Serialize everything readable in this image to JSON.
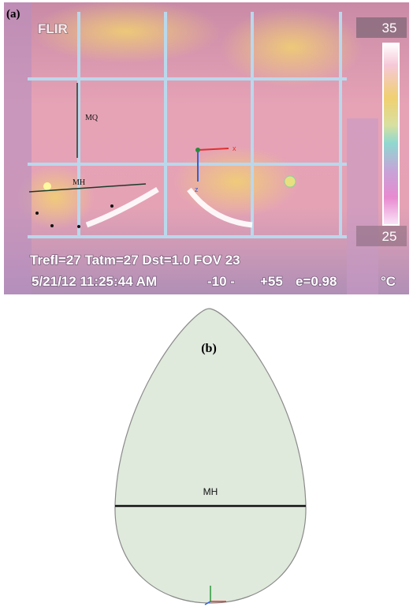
{
  "panel_a": {
    "label": "(a)",
    "brand": "FLIR",
    "scale_max": "35",
    "scale_min": "25",
    "marker_mq": "MQ",
    "marker_mh": "MH",
    "axis_x": "x",
    "axis_z": "z",
    "status_line1": "Trefl=27 Tatm=27 Dst=1.0 FOV 23",
    "status_date": "5/21/12 11:25:44 AM",
    "status_range_low": "-10 -",
    "status_range_high": "+55",
    "status_emissivity": "e=0.98",
    "unit": "°C"
  },
  "panel_b": {
    "label": "(b)",
    "line_label": "MH"
  }
}
